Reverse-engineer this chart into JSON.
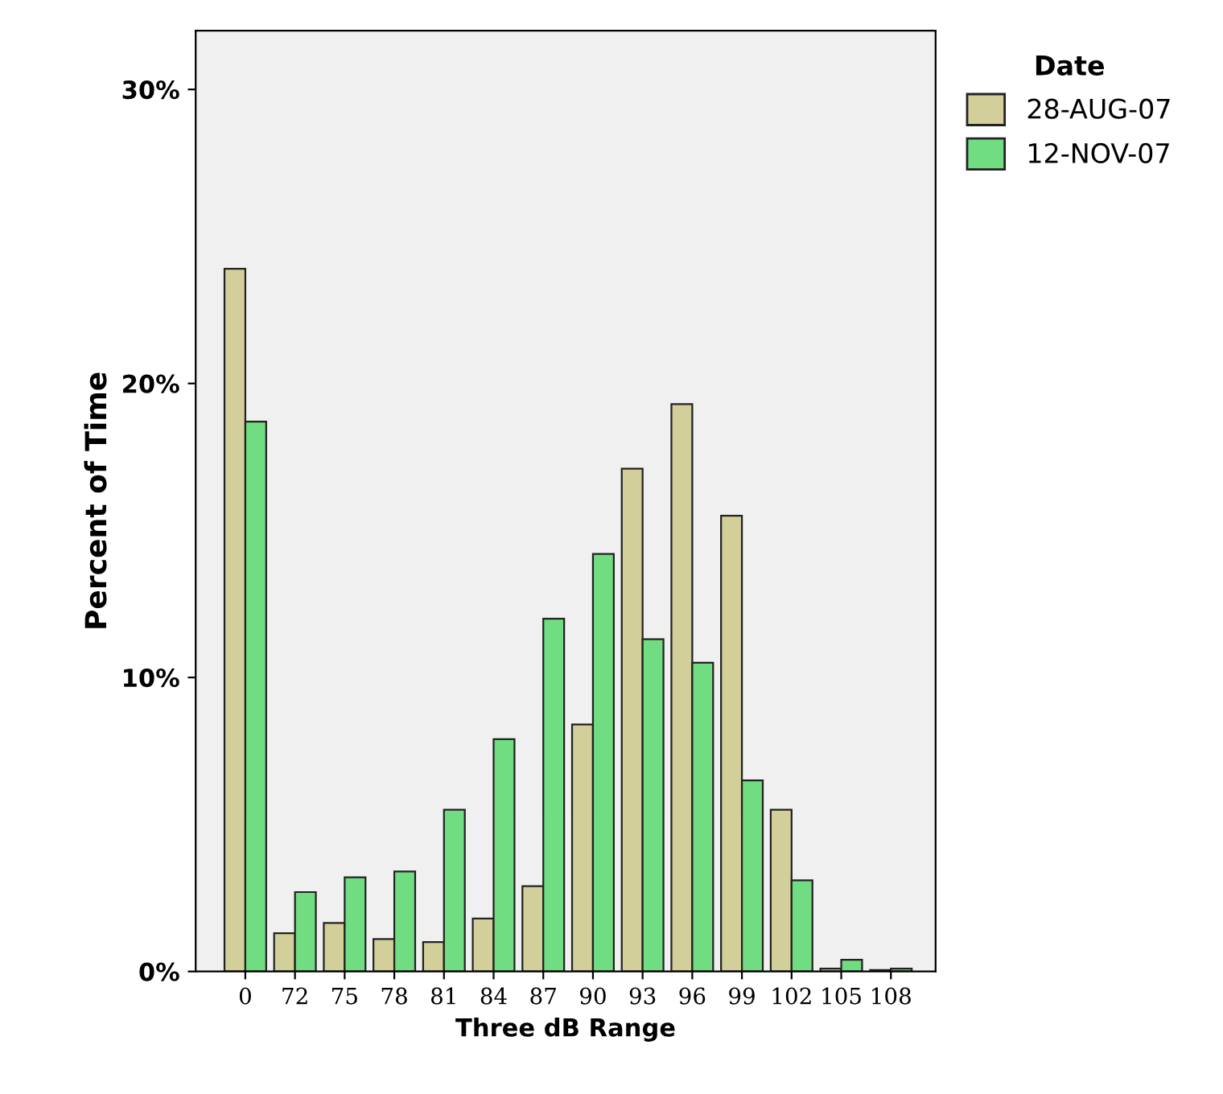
{
  "chart_data": {
    "type": "bar",
    "xlabel": "Three dB Range",
    "ylabel": "Percent of Time",
    "legend_title": "Date",
    "categories": [
      "0",
      "72",
      "75",
      "78",
      "81",
      "84",
      "87",
      "90",
      "93",
      "96",
      "99",
      "102",
      "105",
      "108"
    ],
    "series": [
      {
        "name": "28-AUG-07",
        "color": "#d3cf9a",
        "values": [
          23.9,
          1.3,
          1.65,
          1.1,
          1.0,
          1.8,
          2.9,
          8.4,
          17.1,
          19.3,
          15.5,
          5.5,
          0.1,
          0.05
        ]
      },
      {
        "name": "12-NOV-07",
        "color": "#70dd82",
        "values": [
          18.7,
          2.7,
          3.2,
          3.4,
          5.5,
          7.9,
          12.0,
          14.2,
          11.3,
          10.5,
          6.5,
          3.1,
          0.4,
          0.1
        ]
      }
    ],
    "ylim": [
      0,
      32
    ],
    "yticks": [
      {
        "value": 0,
        "label": "0%"
      },
      {
        "value": 10,
        "label": "10%"
      },
      {
        "value": 20,
        "label": "20%"
      },
      {
        "value": 30,
        "label": "30%"
      }
    ],
    "grid": false,
    "legend": "top right"
  }
}
